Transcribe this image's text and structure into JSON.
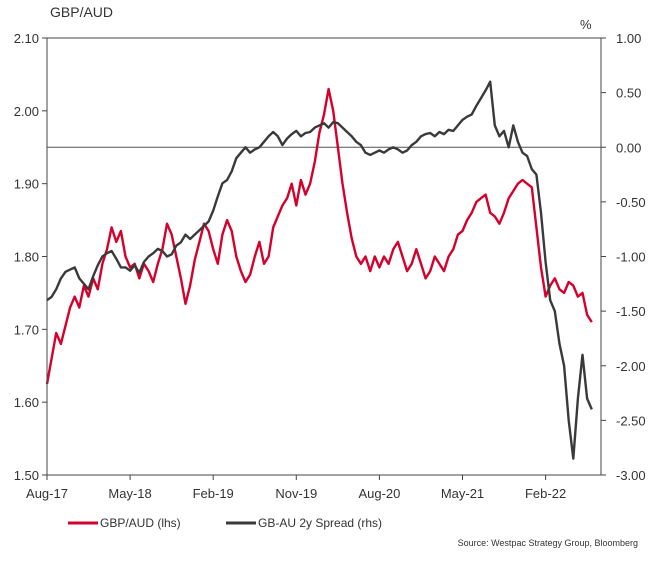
{
  "chart_data": {
    "type": "line",
    "title": "GBP/AUD",
    "y2_unit_label": "%",
    "x_ticks": [
      "Aug-17",
      "May-18",
      "Feb-19",
      "Nov-19",
      "Aug-20",
      "May-21",
      "Feb-22"
    ],
    "x_tick_t": [
      0,
      9,
      18,
      27,
      36,
      45,
      54
    ],
    "x_range": [
      0,
      60
    ],
    "ylim": [
      1.5,
      2.1
    ],
    "y_ticks": [
      "1.50",
      "1.60",
      "1.70",
      "1.80",
      "1.90",
      "2.00",
      "2.10"
    ],
    "y2lim": [
      -3.0,
      1.0
    ],
    "y2_ticks": [
      "-3.00",
      "-2.50",
      "-2.00",
      "-1.50",
      "-1.00",
      "-0.50",
      "0.00",
      "0.50",
      "1.00"
    ],
    "reference_line_rhs": 0.0,
    "x_unit": "months since Aug-17",
    "series": [
      {
        "name": "GBP/AUD (lhs)",
        "axis": "left",
        "color": "#d5002b",
        "points": [
          [
            0,
            1.625
          ],
          [
            0.5,
            1.66
          ],
          [
            1,
            1.695
          ],
          [
            1.5,
            1.68
          ],
          [
            2,
            1.705
          ],
          [
            2.5,
            1.73
          ],
          [
            3,
            1.745
          ],
          [
            3.5,
            1.73
          ],
          [
            4,
            1.76
          ],
          [
            4.5,
            1.745
          ],
          [
            5,
            1.77
          ],
          [
            5.5,
            1.755
          ],
          [
            6,
            1.79
          ],
          [
            6.5,
            1.81
          ],
          [
            7,
            1.84
          ],
          [
            7.5,
            1.82
          ],
          [
            8,
            1.835
          ],
          [
            8.5,
            1.8
          ],
          [
            9,
            1.785
          ],
          [
            9.5,
            1.79
          ],
          [
            10,
            1.77
          ],
          [
            10.5,
            1.79
          ],
          [
            11,
            1.78
          ],
          [
            11.5,
            1.765
          ],
          [
            12,
            1.79
          ],
          [
            12.5,
            1.81
          ],
          [
            13,
            1.845
          ],
          [
            13.5,
            1.83
          ],
          [
            14,
            1.8
          ],
          [
            14.5,
            1.77
          ],
          [
            15,
            1.735
          ],
          [
            15.5,
            1.76
          ],
          [
            16,
            1.795
          ],
          [
            16.5,
            1.82
          ],
          [
            17,
            1.845
          ],
          [
            17.5,
            1.835
          ],
          [
            18,
            1.81
          ],
          [
            18.5,
            1.79
          ],
          [
            19,
            1.83
          ],
          [
            19.5,
            1.85
          ],
          [
            20,
            1.835
          ],
          [
            20.5,
            1.8
          ],
          [
            21,
            1.78
          ],
          [
            21.5,
            1.765
          ],
          [
            22,
            1.775
          ],
          [
            22.5,
            1.8
          ],
          [
            23,
            1.82
          ],
          [
            23.5,
            1.79
          ],
          [
            24,
            1.8
          ],
          [
            24.5,
            1.84
          ],
          [
            25,
            1.855
          ],
          [
            25.5,
            1.87
          ],
          [
            26,
            1.88
          ],
          [
            26.5,
            1.9
          ],
          [
            27,
            1.87
          ],
          [
            27.5,
            1.905
          ],
          [
            28,
            1.885
          ],
          [
            28.5,
            1.9
          ],
          [
            29,
            1.93
          ],
          [
            29.5,
            1.97
          ],
          [
            30,
            1.995
          ],
          [
            30.5,
            2.03
          ],
          [
            31,
            2.0
          ],
          [
            31.5,
            1.95
          ],
          [
            32,
            1.9
          ],
          [
            32.5,
            1.86
          ],
          [
            33,
            1.825
          ],
          [
            33.5,
            1.8
          ],
          [
            34,
            1.79
          ],
          [
            34.5,
            1.8
          ],
          [
            35,
            1.78
          ],
          [
            35.5,
            1.8
          ],
          [
            36,
            1.785
          ],
          [
            36.5,
            1.8
          ],
          [
            37,
            1.79
          ],
          [
            37.5,
            1.81
          ],
          [
            38,
            1.82
          ],
          [
            38.5,
            1.8
          ],
          [
            39,
            1.78
          ],
          [
            39.5,
            1.79
          ],
          [
            40,
            1.81
          ],
          [
            40.5,
            1.79
          ],
          [
            41,
            1.77
          ],
          [
            41.5,
            1.78
          ],
          [
            42,
            1.8
          ],
          [
            42.5,
            1.79
          ],
          [
            43,
            1.78
          ],
          [
            43.5,
            1.8
          ],
          [
            44,
            1.81
          ],
          [
            44.5,
            1.83
          ],
          [
            45,
            1.835
          ],
          [
            45.5,
            1.85
          ],
          [
            46,
            1.86
          ],
          [
            46.5,
            1.875
          ],
          [
            47,
            1.88
          ],
          [
            47.5,
            1.885
          ],
          [
            48,
            1.86
          ],
          [
            48.5,
            1.855
          ],
          [
            49,
            1.845
          ],
          [
            49.5,
            1.86
          ],
          [
            50,
            1.88
          ],
          [
            50.5,
            1.89
          ],
          [
            51,
            1.9
          ],
          [
            51.5,
            1.905
          ],
          [
            52,
            1.9
          ],
          [
            52.5,
            1.895
          ],
          [
            53,
            1.84
          ],
          [
            53.5,
            1.785
          ],
          [
            54,
            1.745
          ],
          [
            54.5,
            1.76
          ],
          [
            55,
            1.77
          ],
          [
            55.5,
            1.755
          ],
          [
            56,
            1.75
          ],
          [
            56.5,
            1.765
          ],
          [
            57,
            1.76
          ],
          [
            57.5,
            1.745
          ],
          [
            58,
            1.75
          ],
          [
            58.5,
            1.72
          ],
          [
            59,
            1.71
          ]
        ]
      },
      {
        "name": "GB-AU 2y Spread (rhs)",
        "axis": "right",
        "color": "#3a3a3a",
        "points": [
          [
            0,
            -1.4
          ],
          [
            0.5,
            -1.37
          ],
          [
            1,
            -1.3
          ],
          [
            1.5,
            -1.2
          ],
          [
            2,
            -1.14
          ],
          [
            2.5,
            -1.12
          ],
          [
            3,
            -1.1
          ],
          [
            3.5,
            -1.2
          ],
          [
            4,
            -1.25
          ],
          [
            4.5,
            -1.3
          ],
          [
            5,
            -1.18
          ],
          [
            5.5,
            -1.08
          ],
          [
            6,
            -1.0
          ],
          [
            6.5,
            -0.97
          ],
          [
            7,
            -0.95
          ],
          [
            7.5,
            -1.02
          ],
          [
            8,
            -1.1
          ],
          [
            8.5,
            -1.1
          ],
          [
            9,
            -1.13
          ],
          [
            9.5,
            -1.08
          ],
          [
            10,
            -1.15
          ],
          [
            10.5,
            -1.05
          ],
          [
            11,
            -1.0
          ],
          [
            11.5,
            -0.97
          ],
          [
            12,
            -0.93
          ],
          [
            12.5,
            -0.95
          ],
          [
            13,
            -1.0
          ],
          [
            13.5,
            -0.98
          ],
          [
            14,
            -0.9
          ],
          [
            14.5,
            -0.87
          ],
          [
            15,
            -0.8
          ],
          [
            15.5,
            -0.84
          ],
          [
            16,
            -0.8
          ],
          [
            16.5,
            -0.76
          ],
          [
            17,
            -0.72
          ],
          [
            17.5,
            -0.68
          ],
          [
            18,
            -0.58
          ],
          [
            18.5,
            -0.45
          ],
          [
            19,
            -0.33
          ],
          [
            19.5,
            -0.3
          ],
          [
            20,
            -0.22
          ],
          [
            20.5,
            -0.1
          ],
          [
            21,
            -0.05
          ],
          [
            21.5,
            0.0
          ],
          [
            22,
            -0.05
          ],
          [
            22.5,
            -0.02
          ],
          [
            23,
            0.0
          ],
          [
            23.5,
            0.05
          ],
          [
            24,
            0.1
          ],
          [
            24.5,
            0.14
          ],
          [
            25,
            0.1
          ],
          [
            25.5,
            0.02
          ],
          [
            26,
            0.08
          ],
          [
            26.5,
            0.12
          ],
          [
            27,
            0.15
          ],
          [
            27.5,
            0.1
          ],
          [
            28,
            0.13
          ],
          [
            28.5,
            0.14
          ],
          [
            29,
            0.18
          ],
          [
            29.5,
            0.2
          ],
          [
            30,
            0.22
          ],
          [
            30.5,
            0.18
          ],
          [
            31,
            0.23
          ],
          [
            31.5,
            0.22
          ],
          [
            32,
            0.18
          ],
          [
            32.5,
            0.14
          ],
          [
            33,
            0.1
          ],
          [
            33.5,
            0.05
          ],
          [
            34,
            0.02
          ],
          [
            34.5,
            -0.05
          ],
          [
            35,
            -0.07
          ],
          [
            35.5,
            -0.05
          ],
          [
            36,
            -0.03
          ],
          [
            36.5,
            -0.05
          ],
          [
            37,
            -0.02
          ],
          [
            37.5,
            0.0
          ],
          [
            38,
            -0.02
          ],
          [
            38.5,
            -0.05
          ],
          [
            39,
            -0.03
          ],
          [
            39.5,
            0.02
          ],
          [
            40,
            0.05
          ],
          [
            40.5,
            0.1
          ],
          [
            41,
            0.12
          ],
          [
            41.5,
            0.13
          ],
          [
            42,
            0.1
          ],
          [
            42.5,
            0.14
          ],
          [
            43,
            0.12
          ],
          [
            43.5,
            0.16
          ],
          [
            44,
            0.15
          ],
          [
            44.5,
            0.2
          ],
          [
            45,
            0.25
          ],
          [
            45.5,
            0.28
          ],
          [
            46,
            0.3
          ],
          [
            46.5,
            0.38
          ],
          [
            47,
            0.45
          ],
          [
            47.5,
            0.52
          ],
          [
            48,
            0.6
          ],
          [
            48.5,
            0.2
          ],
          [
            49,
            0.1
          ],
          [
            49.5,
            0.15
          ],
          [
            50,
            0.0
          ],
          [
            50.5,
            0.2
          ],
          [
            51,
            0.05
          ],
          [
            51.5,
            -0.05
          ],
          [
            52,
            -0.08
          ],
          [
            52.5,
            -0.2
          ],
          [
            53,
            -0.25
          ],
          [
            53.5,
            -0.6
          ],
          [
            54,
            -1.05
          ],
          [
            54.5,
            -1.4
          ],
          [
            55,
            -1.5
          ],
          [
            55.5,
            -1.8
          ],
          [
            56,
            -2.0
          ],
          [
            56.5,
            -2.5
          ],
          [
            57,
            -2.85
          ],
          [
            57.5,
            -2.3
          ],
          [
            58,
            -1.9
          ],
          [
            58.5,
            -2.3
          ],
          [
            59,
            -2.4
          ]
        ]
      }
    ],
    "legend": [
      "GBP/AUD (lhs)",
      "GB-AU 2y Spread (rhs)"
    ],
    "source": "Source: Westpac Strategy Group, Bloomberg"
  }
}
